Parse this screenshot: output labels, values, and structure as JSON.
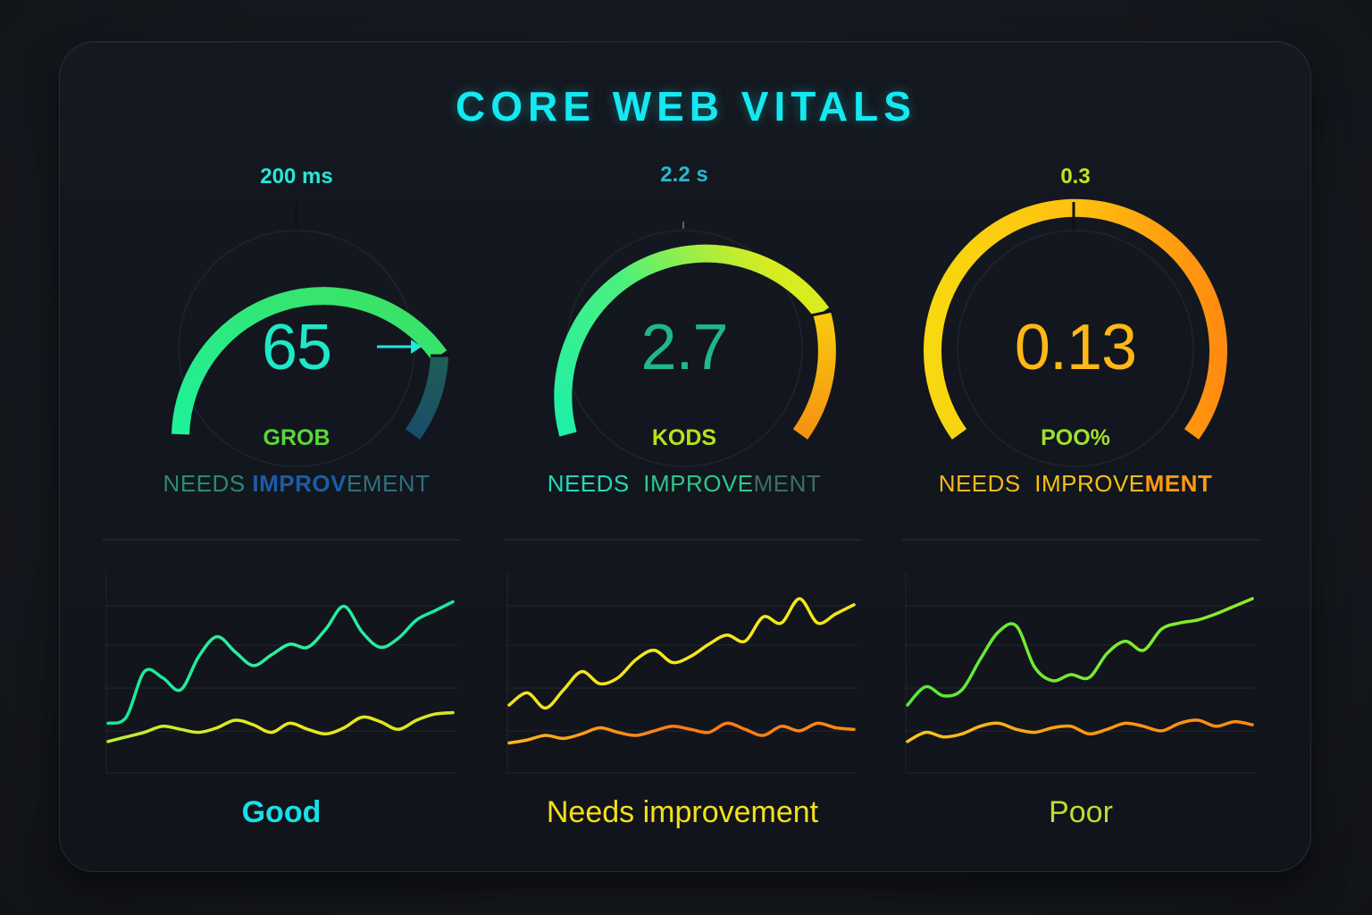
{
  "dashboard": {
    "title": "CORE WEB VITALS",
    "colors": {
      "background": "#15181e",
      "card": "#12161d",
      "title": "#14e9f2",
      "good": "#1ef0a0",
      "needs_improvement": "#f5e21c",
      "poor": "#ff8a10"
    }
  },
  "gauges": [
    {
      "threshold_label": "200 ms",
      "value": "65",
      "rating_label": "GROB",
      "status_parts": [
        "NEEDS ",
        "IMPROV",
        "EMENT"
      ],
      "pointer_icon": "arrow-right-icon"
    },
    {
      "threshold_label": "2.2 s",
      "value": "2.7",
      "rating_label": "KODS",
      "status_parts": [
        "NEEDS  ",
        "IMPROVE",
        "MENT"
      ]
    },
    {
      "threshold_label": "0.3",
      "value": "0.13",
      "rating_label": "POO%",
      "status_parts": [
        "NEEDS  ",
        "IMPROVE",
        "MENT"
      ]
    }
  ],
  "charts": [
    {
      "label": "Good"
    },
    {
      "label": "Needs improvement"
    },
    {
      "label": "Poor"
    }
  ],
  "chart_data": [
    {
      "type": "line",
      "title": "Good",
      "x": [
        0,
        1,
        2,
        3,
        4,
        5,
        6,
        7,
        8,
        9,
        10,
        11,
        12,
        13,
        14,
        15,
        16,
        17,
        18,
        19
      ],
      "series": [
        {
          "name": "upper",
          "values": [
            18,
            22,
            52,
            48,
            40,
            62,
            75,
            65,
            56,
            63,
            70,
            68,
            80,
            95,
            78,
            68,
            74,
            86,
            92,
            98
          ]
        },
        {
          "name": "lower",
          "values": [
            6,
            9,
            12,
            16,
            14,
            12,
            15,
            20,
            17,
            12,
            18,
            14,
            11,
            15,
            22,
            19,
            14,
            20,
            24,
            25
          ]
        }
      ],
      "xlabel": "",
      "ylabel": "",
      "ylim": [
        0,
        100
      ],
      "grid": true
    },
    {
      "type": "line",
      "title": "Needs improvement",
      "x": [
        0,
        1,
        2,
        3,
        4,
        5,
        6,
        7,
        8,
        9,
        10,
        11,
        12,
        13,
        14,
        15,
        16,
        17,
        18,
        19
      ],
      "series": [
        {
          "name": "upper",
          "values": [
            30,
            38,
            28,
            40,
            52,
            44,
            48,
            60,
            66,
            58,
            62,
            70,
            76,
            72,
            88,
            84,
            100,
            84,
            90,
            96
          ]
        },
        {
          "name": "lower",
          "values": [
            5,
            7,
            10,
            8,
            11,
            15,
            12,
            10,
            13,
            16,
            14,
            12,
            18,
            14,
            10,
            16,
            13,
            18,
            15,
            14
          ]
        }
      ],
      "xlabel": "",
      "ylabel": "",
      "ylim": [
        0,
        100
      ],
      "grid": true
    },
    {
      "type": "line",
      "title": "Poor",
      "x": [
        0,
        1,
        2,
        3,
        4,
        5,
        6,
        7,
        8,
        9,
        10,
        11,
        12,
        13,
        14,
        15,
        16,
        17,
        18,
        19
      ],
      "series": [
        {
          "name": "upper",
          "values": [
            30,
            42,
            36,
            40,
            60,
            78,
            82,
            55,
            46,
            50,
            48,
            64,
            72,
            66,
            80,
            84,
            86,
            90,
            95,
            100
          ]
        },
        {
          "name": "lower",
          "values": [
            6,
            12,
            9,
            11,
            16,
            18,
            14,
            12,
            15,
            16,
            11,
            14,
            18,
            16,
            13,
            18,
            20,
            16,
            19,
            17
          ]
        }
      ],
      "xlabel": "",
      "ylabel": "",
      "ylim": [
        0,
        100
      ],
      "grid": true
    }
  ]
}
